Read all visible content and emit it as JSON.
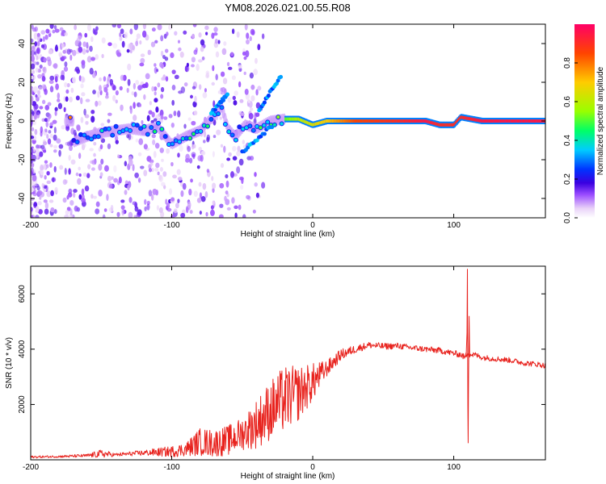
{
  "title": "YM08.2026.021.00.55.R08",
  "colors": {
    "snr_line": "#e8231e",
    "frame": "#000000",
    "background": "#ffffff"
  },
  "chart_data": [
    {
      "type": "heatmap",
      "title": "YM08.2026.021.00.55.R08",
      "xlabel": "Height of straight line (km)",
      "ylabel": "Frequency (Hz)",
      "xlim": [
        -200,
        165
      ],
      "ylim": [
        -50,
        50
      ],
      "xticks": [
        -200,
        -100,
        0,
        100
      ],
      "yticks": [
        -40,
        -20,
        0,
        20,
        40
      ],
      "xtick_labels": [
        "-200",
        "-100",
        "0",
        "100"
      ],
      "ytick_labels": [
        "-40",
        "-20",
        "0",
        "20",
        "40"
      ],
      "colorbar": {
        "label": "Normalized spectral amplitude",
        "range": [
          0,
          1
        ],
        "ticks": [
          0.0,
          0.2,
          0.4,
          0.6,
          0.8
        ],
        "tick_labels": [
          "0.0",
          "0.2",
          "0.4",
          "0.6",
          "0.8"
        ],
        "colormap": [
          "#ffffff",
          "#e8d0f8",
          "#9a4cff",
          "#3a00e0",
          "#0033ff",
          "#00ccff",
          "#00ff66",
          "#99ff00",
          "#ffcc00",
          "#ff4400",
          "#ff0066"
        ]
      },
      "ridge": [
        {
          "x": -170,
          "y": -11,
          "v": 0.25
        },
        {
          "x": -160,
          "y": -8,
          "v": 0.3
        },
        {
          "x": -150,
          "y": -6,
          "v": 0.35
        },
        {
          "x": -140,
          "y": -5,
          "v": 0.3
        },
        {
          "x": -130,
          "y": -4,
          "v": 0.38
        },
        {
          "x": -120,
          "y": -5,
          "v": 0.35
        },
        {
          "x": -110,
          "y": -3,
          "v": 0.4
        },
        {
          "x": -100,
          "y": -12,
          "v": 0.3
        },
        {
          "x": -90,
          "y": -8,
          "v": 0.4
        },
        {
          "x": -80,
          "y": -5,
          "v": 0.42
        },
        {
          "x": -70,
          "y": 3,
          "v": 0.38
        },
        {
          "x": -65,
          "y": 8,
          "v": 0.3
        },
        {
          "x": -60,
          "y": -4,
          "v": 0.32
        },
        {
          "x": -55,
          "y": -8,
          "v": 0.3
        },
        {
          "x": -48,
          "y": -2,
          "v": 0.33
        },
        {
          "x": -40,
          "y": -4,
          "v": 0.4
        },
        {
          "x": -30,
          "y": 0,
          "v": 0.45
        },
        {
          "x": -20,
          "y": 1,
          "v": 0.5
        },
        {
          "x": -10,
          "y": 1,
          "v": 0.6
        },
        {
          "x": 0,
          "y": -2,
          "v": 0.65
        },
        {
          "x": 10,
          "y": 0,
          "v": 0.7
        },
        {
          "x": 30,
          "y": 0,
          "v": 0.85
        },
        {
          "x": 60,
          "y": 0,
          "v": 0.9
        },
        {
          "x": 80,
          "y": 0,
          "v": 0.95
        },
        {
          "x": 90,
          "y": -2,
          "v": 0.9
        },
        {
          "x": 100,
          "y": -2,
          "v": 0.9
        },
        {
          "x": 105,
          "y": 2,
          "v": 0.9
        },
        {
          "x": 120,
          "y": 0,
          "v": 0.95
        },
        {
          "x": 140,
          "y": 0,
          "v": 0.95
        },
        {
          "x": 165,
          "y": 0,
          "v": 0.95
        }
      ],
      "branches": [
        {
          "x": [
            -50,
            -28
          ],
          "y": [
            -16,
            -2
          ],
          "v": 0.3
        },
        {
          "x": [
            -38,
            -22
          ],
          "y": [
            6,
            24
          ],
          "v": 0.3
        },
        {
          "x": [
            -72,
            -60
          ],
          "y": [
            4,
            14
          ],
          "v": 0.3
        }
      ]
    },
    {
      "type": "line",
      "xlabel": "Height of straight line (km)",
      "ylabel": "SNR (10 * v/v)",
      "xlim": [
        -200,
        165
      ],
      "ylim": [
        0,
        7000
      ],
      "xticks": [
        -200,
        -100,
        0,
        100
      ],
      "yticks": [
        2000,
        4000,
        6000
      ],
      "xtick_labels": [
        "-200",
        "-100",
        "0",
        "100"
      ],
      "ytick_labels": [
        "2000",
        "4000",
        "6000"
      ],
      "series": [
        {
          "name": "SNR",
          "x": [
            -200,
            -180,
            -160,
            -150,
            -140,
            -120,
            -100,
            -90,
            -80,
            -70,
            -60,
            -50,
            -40,
            -30,
            -20,
            -10,
            0,
            10,
            20,
            30,
            40,
            50,
            60,
            70,
            80,
            90,
            100,
            105,
            108,
            110,
            112,
            115,
            120,
            130,
            140,
            150,
            160,
            165
          ],
          "values": [
            100,
            120,
            150,
            220,
            180,
            250,
            300,
            380,
            650,
            600,
            700,
            950,
            1300,
            1800,
            2200,
            2400,
            2800,
            3300,
            3800,
            4000,
            4150,
            4100,
            4120,
            4050,
            4000,
            3950,
            3850,
            3800,
            3700,
            3900,
            3800,
            3800,
            3700,
            3650,
            3600,
            3500,
            3450,
            3400
          ],
          "noise": [
            40,
            40,
            60,
            150,
            60,
            100,
            200,
            250,
            500,
            500,
            550,
            600,
            900,
            1100,
            1200,
            1000,
            700,
            300,
            200,
            150,
            120,
            120,
            110,
            110,
            110,
            110,
            110,
            110,
            110,
            110,
            110,
            100,
            100,
            100,
            100,
            100,
            100,
            100
          ],
          "spike": {
            "x": 110,
            "max": 6900,
            "min": 600
          }
        }
      ]
    }
  ]
}
